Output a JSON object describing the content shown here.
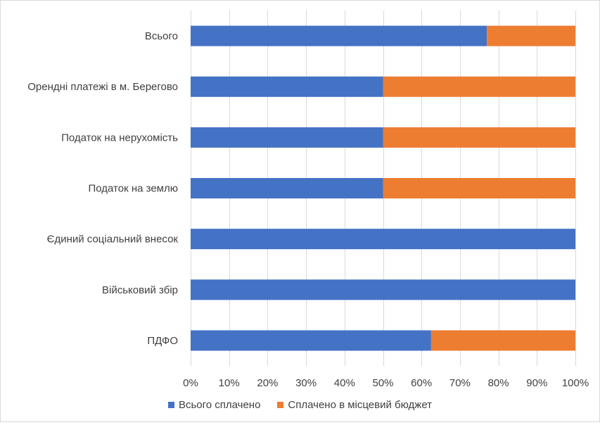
{
  "chart_data": {
    "type": "bar",
    "orientation": "horizontal",
    "stacked": "percent",
    "categories": [
      "Всього",
      "Орендні платежі в м. Берегово",
      "Податок на нерухомість",
      "Податок на землю",
      "Єдиний соціальний внесок",
      "Військовий збір",
      "ПДФО"
    ],
    "series": [
      {
        "name": "Всього сплачено",
        "color": "#4472c4",
        "values": [
          77,
          50,
          50,
          50,
          100,
          100,
          62.5
        ]
      },
      {
        "name": "Сплачено в місцевий бюджет",
        "color": "#ed7d31",
        "values": [
          23,
          50,
          50,
          50,
          0,
          0,
          37.5
        ]
      }
    ],
    "xticks": [
      "0%",
      "10%",
      "20%",
      "30%",
      "40%",
      "50%",
      "60%",
      "70%",
      "80%",
      "90%",
      "100%"
    ],
    "xlim": [
      0,
      100
    ],
    "legend_position": "bottom",
    "grid": true
  }
}
